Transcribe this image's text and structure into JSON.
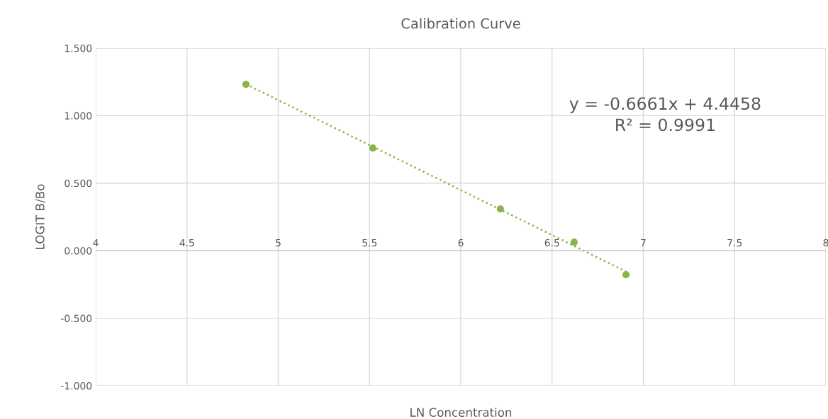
{
  "chart_data": {
    "type": "scatter",
    "title": "Calibration Curve",
    "xlabel": "LN Concentration",
    "ylabel": "LOGIT B/Bo",
    "series": [
      {
        "color": "#8cb34a",
        "x": [
          4.823,
          5.518,
          6.217,
          6.621,
          6.905
        ],
        "values": [
          1.232,
          0.76,
          0.309,
          0.063,
          -0.178
        ],
        "marker": "circle"
      },
      {
        "type": "line",
        "color": "#8cb34a",
        "x": [
          4.823,
          6.905
        ],
        "values": [
          1.233,
          -0.154
        ],
        "line_style": "dotted",
        "marker": "none"
      }
    ],
    "annotations": [
      "y = -0.6661x + 4.4458\nR² = 0.9991"
    ],
    "xlim": [
      4,
      8
    ],
    "xticks": [
      4,
      4.5,
      5,
      5.5,
      6,
      6.5,
      7,
      7.5,
      8
    ],
    "ylim": [
      -1,
      1.5
    ],
    "yticks": [
      {
        "value": -1,
        "label": "-1.000"
      },
      {
        "value": -0.5,
        "label": "-0.500"
      },
      {
        "value": 0,
        "label": "0.000"
      },
      {
        "value": 0.5,
        "label": "0.500"
      },
      {
        "value": 1,
        "label": "1.000"
      },
      {
        "value": 1.5,
        "label": "1.500"
      }
    ],
    "grid": true,
    "legend": false
  }
}
